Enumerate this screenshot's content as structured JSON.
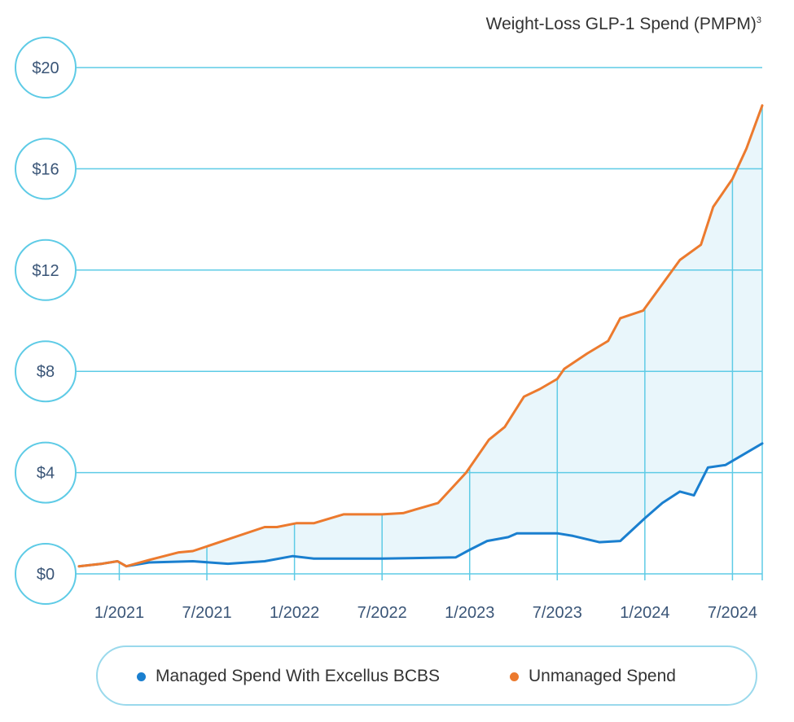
{
  "title": "Weight-Loss GLP-1 Spend (PMPM)",
  "title_sup": "3",
  "colors": {
    "managed": "#1a7fcf",
    "unmanaged": "#ec7a2e",
    "grid": "#5ecbe6",
    "fill": "#e9f6fb",
    "tick_text": "#3a5577"
  },
  "chart_data": {
    "type": "line",
    "xlabel": "",
    "ylabel": "",
    "ylim": [
      0,
      20
    ],
    "y_ticks": [
      "$0",
      "$4",
      "$8",
      "$12",
      "$16",
      "$20"
    ],
    "y_tick_values": [
      0,
      4,
      8,
      12,
      16,
      20
    ],
    "x_ticks": [
      "1/2021",
      "7/2021",
      "1/2022",
      "7/2022",
      "1/2023",
      "7/2023",
      "1/2024",
      "7/2024"
    ],
    "x_tick_values": [
      2021.0,
      2021.5,
      2022.0,
      2022.5,
      2023.0,
      2023.5,
      2024.0,
      2024.5
    ],
    "xlim": [
      2020.77,
      2024.67
    ],
    "legend_position": "bottom",
    "series": [
      {
        "name": "Managed Spend With Excellus BCBS",
        "color_key": "managed",
        "points": [
          [
            2020.77,
            0.3
          ],
          [
            2020.9,
            0.4
          ],
          [
            2020.99,
            0.5
          ],
          [
            2021.04,
            0.3
          ],
          [
            2021.17,
            0.45
          ],
          [
            2021.42,
            0.5
          ],
          [
            2021.62,
            0.4
          ],
          [
            2021.83,
            0.5
          ],
          [
            2021.99,
            0.7
          ],
          [
            2022.11,
            0.6
          ],
          [
            2022.5,
            0.6
          ],
          [
            2022.92,
            0.65
          ],
          [
            2023.0,
            0.95
          ],
          [
            2023.1,
            1.3
          ],
          [
            2023.22,
            1.45
          ],
          [
            2023.27,
            1.6
          ],
          [
            2023.5,
            1.6
          ],
          [
            2023.59,
            1.5
          ],
          [
            2023.74,
            1.25
          ],
          [
            2023.86,
            1.3
          ],
          [
            2024.0,
            2.2
          ],
          [
            2024.1,
            2.8
          ],
          [
            2024.2,
            3.25
          ],
          [
            2024.28,
            3.1
          ],
          [
            2024.36,
            4.2
          ],
          [
            2024.46,
            4.3
          ],
          [
            2024.67,
            5.15
          ]
        ]
      },
      {
        "name": "Unmanaged Spend",
        "color_key": "unmanaged",
        "points": [
          [
            2020.77,
            0.3
          ],
          [
            2020.9,
            0.4
          ],
          [
            2020.99,
            0.5
          ],
          [
            2021.04,
            0.3
          ],
          [
            2021.17,
            0.55
          ],
          [
            2021.34,
            0.85
          ],
          [
            2021.42,
            0.9
          ],
          [
            2021.83,
            1.85
          ],
          [
            2021.9,
            1.85
          ],
          [
            2022.01,
            2.0
          ],
          [
            2022.11,
            2.0
          ],
          [
            2022.28,
            2.35
          ],
          [
            2022.5,
            2.35
          ],
          [
            2022.62,
            2.4
          ],
          [
            2022.82,
            2.8
          ],
          [
            2022.98,
            4.0
          ],
          [
            2023.11,
            5.3
          ],
          [
            2023.2,
            5.8
          ],
          [
            2023.31,
            7.0
          ],
          [
            2023.4,
            7.3
          ],
          [
            2023.5,
            7.7
          ],
          [
            2023.54,
            8.1
          ],
          [
            2023.67,
            8.7
          ],
          [
            2023.79,
            9.2
          ],
          [
            2023.86,
            10.1
          ],
          [
            2023.99,
            10.4
          ],
          [
            2024.2,
            12.4
          ],
          [
            2024.32,
            13.0
          ],
          [
            2024.39,
            14.5
          ],
          [
            2024.5,
            15.6
          ],
          [
            2024.58,
            16.8
          ],
          [
            2024.67,
            18.5
          ]
        ]
      }
    ]
  }
}
